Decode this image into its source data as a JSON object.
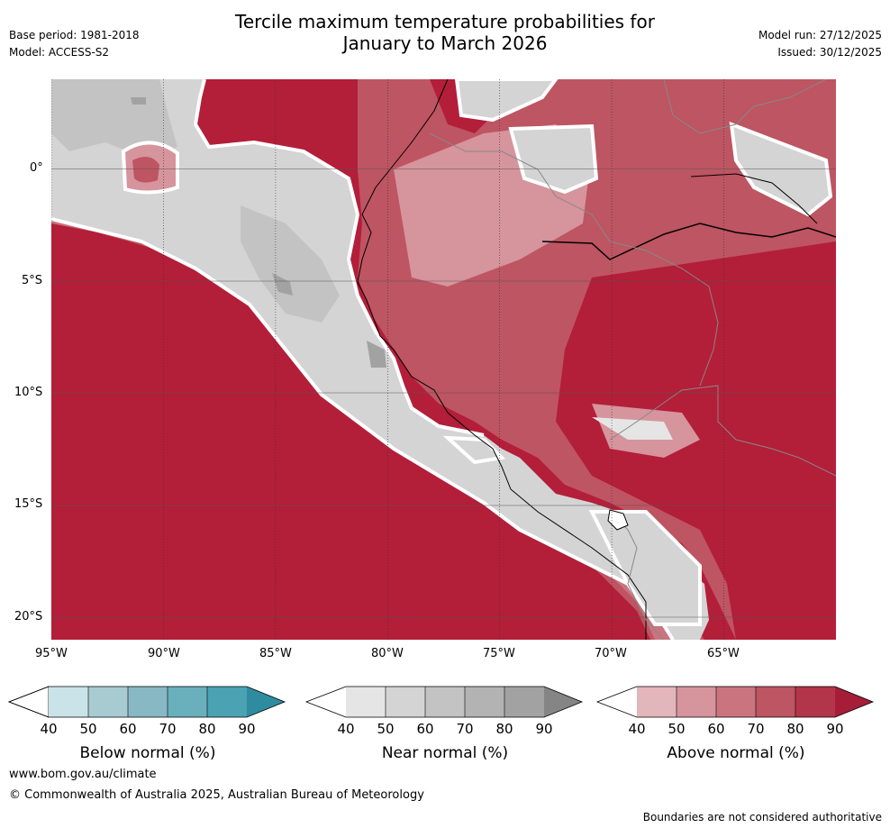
{
  "header": {
    "title_line1": "Tercile maximum temperature probabilities for",
    "title_line2": "January to March 2026",
    "base_period": "Base period: 1981-2018",
    "model": "Model: ACCESS-S2",
    "model_run": "Model run: 27/12/2025",
    "issued": "Issued: 30/12/2025"
  },
  "map": {
    "lat_labels": [
      "0°",
      "5°S",
      "10°S",
      "15°S",
      "20°S"
    ],
    "lon_labels": [
      "95°W",
      "90°W",
      "85°W",
      "80°W",
      "75°W",
      "70°W",
      "65°W"
    ],
    "extent": {
      "lon_min": -95,
      "lon_max": -60,
      "lat_min": -21,
      "lat_max": 4
    }
  },
  "legend": {
    "below": {
      "title": "Below normal (%)",
      "ticks": [
        "40",
        "50",
        "60",
        "70",
        "80",
        "90"
      ],
      "colors": [
        "#ffffff",
        "#cae3e8",
        "#a8cbd2",
        "#88b8c4",
        "#6aafbc",
        "#4aa2b3",
        "#2f8ca0"
      ]
    },
    "near": {
      "title": "Near normal (%)",
      "ticks": [
        "40",
        "50",
        "60",
        "70",
        "80",
        "90"
      ],
      "colors": [
        "#ffffff",
        "#e5e5e5",
        "#d4d4d4",
        "#c3c3c3",
        "#b3b3b3",
        "#a2a2a2",
        "#858585"
      ]
    },
    "above": {
      "title": "Above normal (%)",
      "ticks": [
        "40",
        "50",
        "60",
        "70",
        "80",
        "90"
      ],
      "colors": [
        "#ffffff",
        "#e3b6bc",
        "#d6949d",
        "#ca747f",
        "#be5562",
        "#b3354a",
        "#a51d37"
      ]
    }
  },
  "footer": {
    "website": "www.bom.gov.au/climate",
    "copyright": "© Commonwealth of Australia 2025, Australian Bureau of Meteorology",
    "disclaimer": "Boundaries are not considered authoritative"
  }
}
